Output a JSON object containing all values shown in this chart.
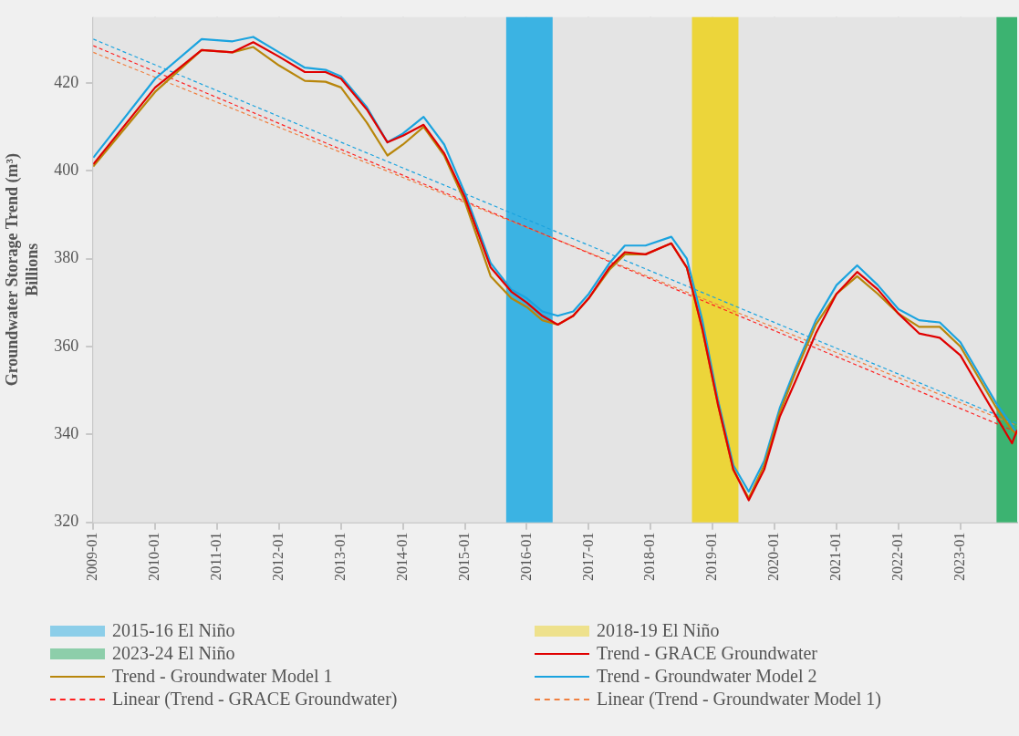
{
  "chart_data": {
    "type": "line",
    "ylabel": "Groundwater Storage Trend (m³)",
    "annotations": [
      "Billions"
    ],
    "xlim": [
      "2009-01",
      "2023-12"
    ],
    "ylim": [
      320,
      435
    ],
    "xticks": [
      "2009-01",
      "2010-01",
      "2011-01",
      "2012-01",
      "2013-01",
      "2014-01",
      "2015-01",
      "2016-01",
      "2017-01",
      "2018-01",
      "2019-01",
      "2020-01",
      "2021-01",
      "2022-01",
      "2023-01"
    ],
    "yticks": [
      320,
      340,
      360,
      380,
      400,
      420
    ],
    "grid": true,
    "legend": "bottom",
    "marker": "none",
    "bands": [
      {
        "axis": "x",
        "from": "2015-09",
        "to": "2016-06",
        "label": "2015-16 El Niño",
        "color": "#3bb3e3"
      },
      {
        "axis": "x",
        "from": "2018-09",
        "to": "2019-06",
        "label": "2018-19 El Niño",
        "color": "#ecd53a"
      },
      {
        "axis": "x",
        "from": "2023-08",
        "to": "2023-12",
        "label": "2023-24 El Niño",
        "color": "#3cb371"
      }
    ],
    "x": [
      "2009-01",
      "2010-01",
      "2010-10",
      "2011-04",
      "2011-08",
      "2012-01",
      "2012-06",
      "2012-10",
      "2013-01",
      "2013-06",
      "2013-10",
      "2014-01",
      "2014-05",
      "2014-09",
      "2015-01",
      "2015-06",
      "2015-10",
      "2016-01",
      "2016-04",
      "2016-07",
      "2016-10",
      "2017-01",
      "2017-05",
      "2017-08",
      "2017-12",
      "2018-05",
      "2018-08",
      "2018-11",
      "2019-02",
      "2019-05",
      "2019-08",
      "2019-11",
      "2020-02",
      "2020-05",
      "2020-09",
      "2021-01",
      "2021-05",
      "2021-09",
      "2022-01",
      "2022-05",
      "2022-09",
      "2023-01",
      "2023-05",
      "2023-08",
      "2023-11",
      "2023-12"
    ],
    "series": [
      {
        "name": "Trend - GRACE Groundwater",
        "color": "#e00000",
        "values": [
          401.5,
          419,
          427.5,
          427,
          429.3,
          426,
          422.5,
          422.5,
          421,
          414,
          406.5,
          408,
          410.5,
          404,
          394,
          378,
          372.5,
          370,
          367,
          365,
          367,
          371,
          378,
          381.5,
          381,
          383.5,
          378,
          364,
          347,
          332,
          325,
          332,
          344,
          352,
          363,
          372,
          377,
          373,
          367.5,
          363,
          362,
          358,
          350,
          344,
          338,
          341
        ]
      },
      {
        "name": "Trend - Groundwater Model 1",
        "color": "#b8860b",
        "values": [
          401,
          418,
          427.5,
          427,
          428.2,
          424,
          420.5,
          420.3,
          419,
          411,
          403.5,
          406,
          410,
          403.5,
          393,
          376,
          371,
          369,
          366,
          365,
          367,
          371,
          377.5,
          381,
          381,
          383.5,
          378,
          364,
          347,
          332,
          325.5,
          333,
          345,
          354,
          365,
          372,
          376,
          372,
          367.5,
          364.5,
          364.5,
          360,
          352,
          346,
          341,
          340
        ]
      },
      {
        "name": "Trend - Groundwater Model 2",
        "color": "#1aa3df",
        "values": [
          403,
          421,
          430,
          429.5,
          430.5,
          427,
          423.5,
          423,
          421.5,
          414.5,
          406.5,
          408.5,
          412.3,
          406,
          395,
          379,
          373,
          371,
          368,
          367,
          368,
          372,
          379,
          383,
          383,
          385,
          380,
          366,
          348,
          333,
          327,
          334,
          346,
          355,
          366,
          374,
          378.5,
          374,
          368.5,
          366,
          365.5,
          361,
          353,
          347,
          342,
          340
        ]
      },
      {
        "name": "Linear (Trend - GRACE Groundwater)",
        "color": "#ff2020",
        "line_style": "dashed",
        "x": [
          "2009-01",
          "2023-12"
        ],
        "values": [
          428.5,
          340.5
        ]
      },
      {
        "name": "Linear (Trend - Groundwater Model 1)",
        "color": "#f08040",
        "line_style": "dashed",
        "x": [
          "2009-01",
          "2023-12"
        ],
        "values": [
          427,
          342
        ]
      },
      {
        "color": "#1aa3df",
        "line_style": "dashed",
        "x": [
          "2009-01",
          "2023-12"
        ],
        "values": [
          430,
          342.5
        ]
      }
    ]
  }
}
